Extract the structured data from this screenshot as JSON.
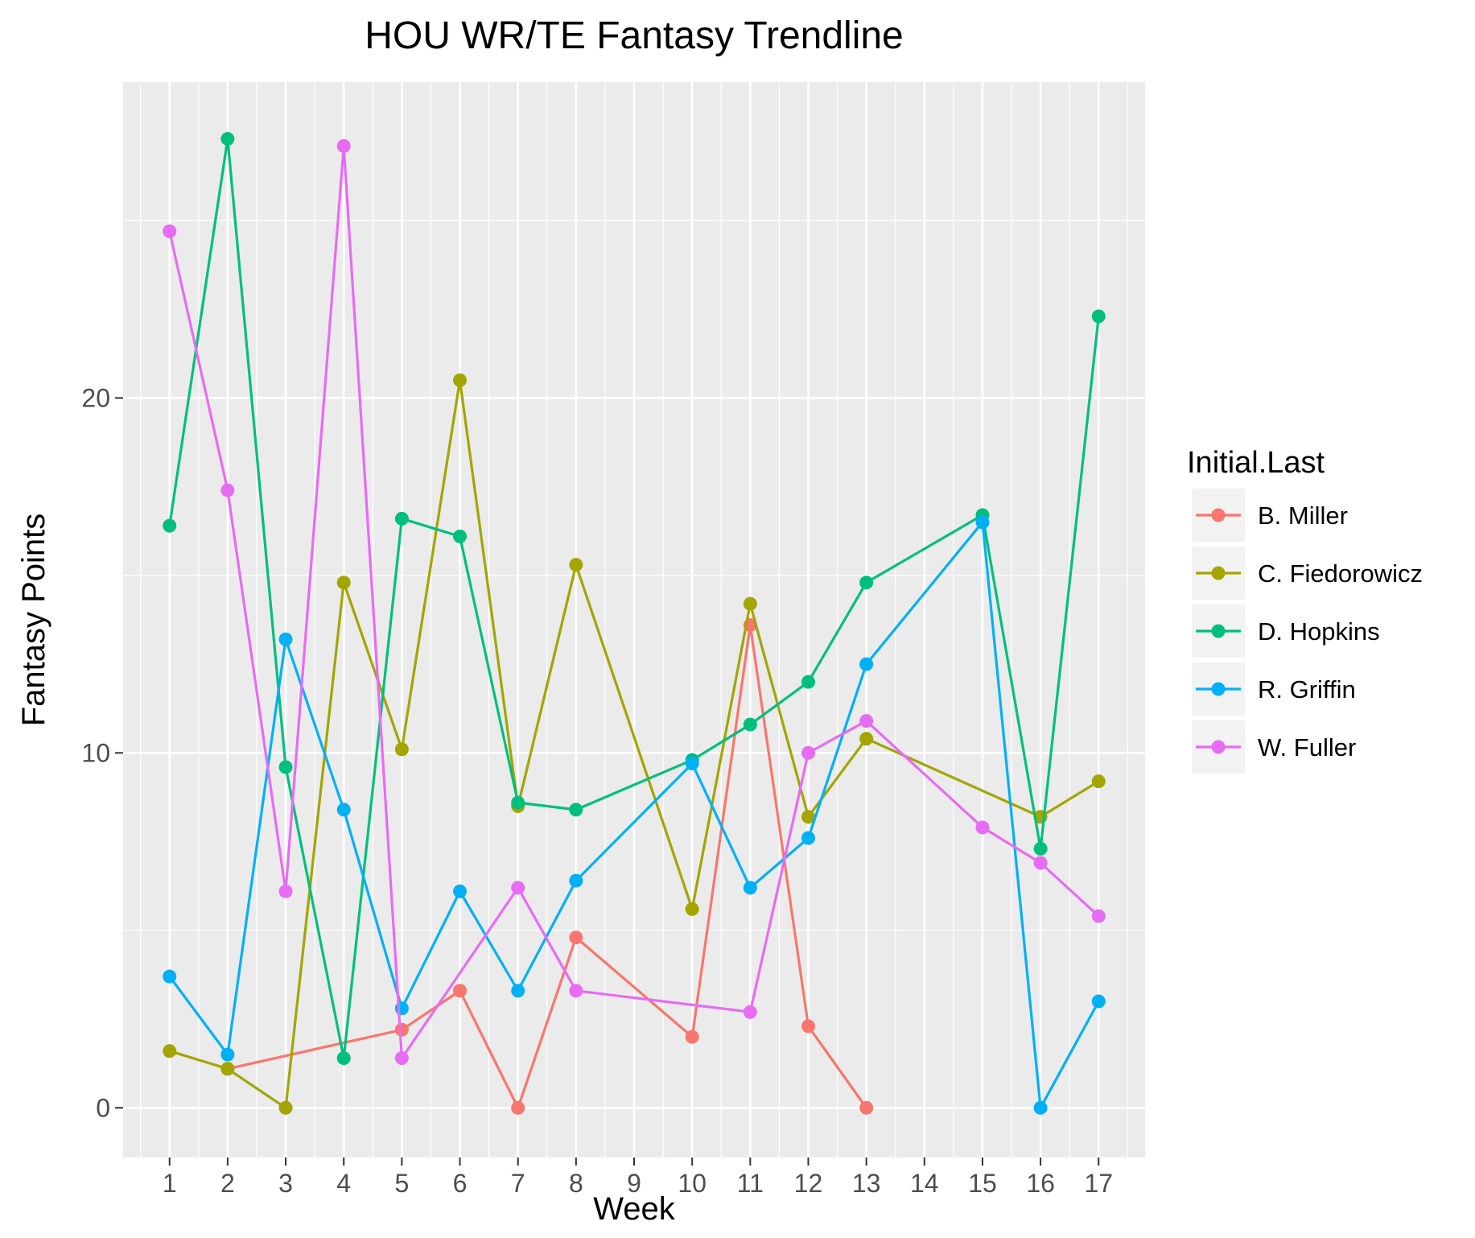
{
  "chart_data": {
    "type": "line",
    "title": "HOU WR/TE Fantasy Trendline",
    "xlabel": "Week",
    "ylabel": "Fantasy Points",
    "ylim": [
      -1.4,
      28.9
    ],
    "y_ticks": [
      0,
      10,
      20
    ],
    "x_ticks": [
      "1",
      "2",
      "3",
      "4",
      "5",
      "6",
      "7",
      "8",
      "9",
      "10",
      "11",
      "12",
      "13",
      "14",
      "15",
      "16",
      "17"
    ],
    "grid": true,
    "legend": {
      "title": "Initial.Last",
      "position": "right"
    },
    "series": [
      {
        "name": "B. Miller",
        "color": "#F8766D",
        "x": [
          2,
          5,
          6,
          7,
          8,
          10,
          11,
          12,
          13
        ],
        "y": [
          1.1,
          2.2,
          3.3,
          0.0,
          4.8,
          2.0,
          13.6,
          2.3,
          0.0
        ]
      },
      {
        "name": "C. Fiedorowicz",
        "color": "#A3A500",
        "x": [
          1,
          2,
          3,
          4,
          5,
          6,
          7,
          8,
          10,
          11,
          12,
          13,
          16,
          17
        ],
        "y": [
          1.6,
          1.1,
          0.0,
          14.8,
          10.1,
          20.5,
          8.5,
          15.3,
          5.6,
          14.2,
          8.2,
          10.4,
          8.2,
          9.2
        ]
      },
      {
        "name": "D. Hopkins",
        "color": "#00BF7D",
        "x": [
          1,
          2,
          3,
          4,
          5,
          6,
          7,
          8,
          10,
          11,
          12,
          13,
          15,
          16,
          17
        ],
        "y": [
          16.4,
          27.3,
          9.6,
          1.4,
          16.6,
          16.1,
          8.6,
          8.4,
          9.8,
          10.8,
          12.0,
          14.8,
          16.7,
          7.3,
          22.3
        ]
      },
      {
        "name": "R. Griffin",
        "color": "#00B0F6",
        "x": [
          1,
          2,
          3,
          4,
          5,
          6,
          7,
          8,
          10,
          11,
          12,
          13,
          15,
          16,
          17
        ],
        "y": [
          3.7,
          1.5,
          13.2,
          8.4,
          2.8,
          6.1,
          3.3,
          6.4,
          9.7,
          6.2,
          7.6,
          12.5,
          16.5,
          0.0,
          3.0
        ]
      },
      {
        "name": "W. Fuller",
        "color": "#E76BF3",
        "x": [
          1,
          2,
          3,
          4,
          5,
          7,
          8,
          11,
          12,
          13,
          15,
          16,
          17
        ],
        "y": [
          24.7,
          17.4,
          6.1,
          27.1,
          1.4,
          6.2,
          3.3,
          2.7,
          10.0,
          10.9,
          7.9,
          6.9,
          5.4
        ]
      }
    ]
  }
}
